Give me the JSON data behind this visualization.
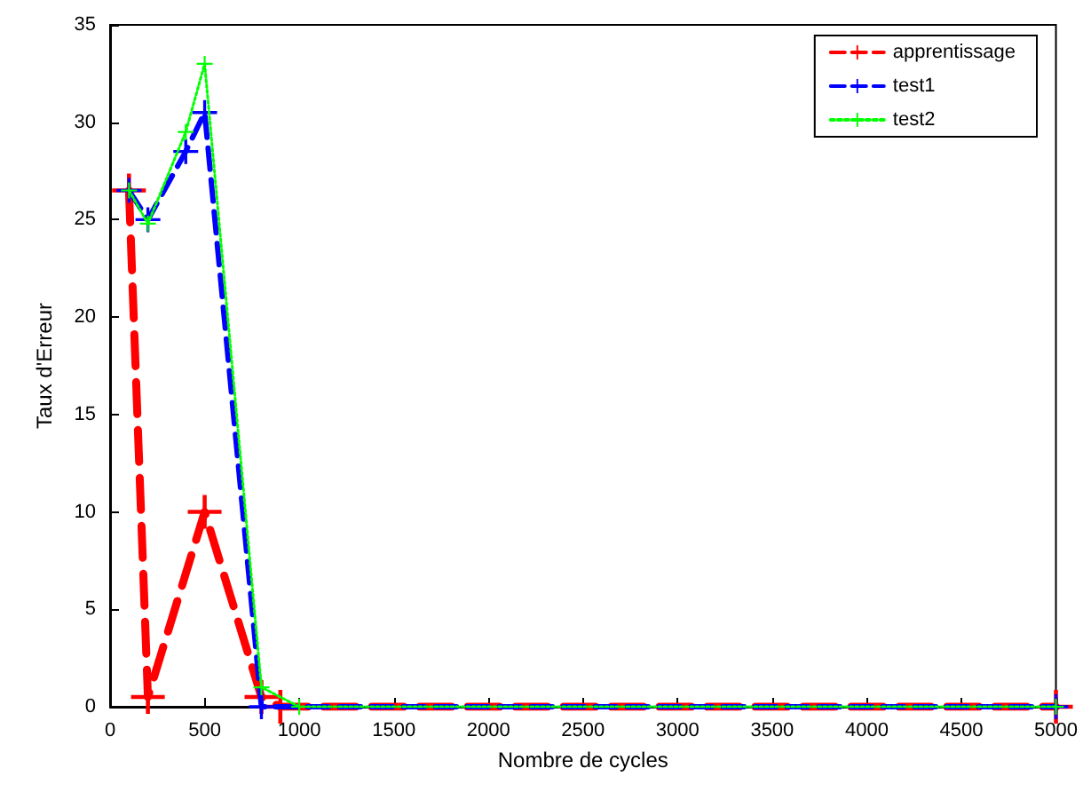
{
  "chart_data": {
    "type": "line",
    "xlabel": "Nombre de cycles",
    "ylabel": "Taux d'Erreur",
    "xlim": [
      0,
      5000
    ],
    "xticks": [
      0,
      500,
      1000,
      1500,
      2000,
      2500,
      3000,
      3500,
      4000,
      4500,
      5000
    ],
    "ylim": [
      0,
      35
    ],
    "yticks": [
      0,
      5,
      10,
      15,
      20,
      25,
      30,
      35
    ],
    "grid": false,
    "legend": "top right",
    "marker": "cross",
    "series": [
      {
        "name": "apprentissage",
        "color": "#ff0000",
        "line_style": "dashed",
        "x": [
          100,
          200,
          500,
          800,
          900,
          5000
        ],
        "values": [
          26.5,
          0.5,
          10,
          0.5,
          0,
          0
        ]
      },
      {
        "name": "test1",
        "color": "#0000ff",
        "line_style": "dashed",
        "x": [
          100,
          200,
          400,
          500,
          800,
          5000
        ],
        "values": [
          26.5,
          25,
          28.5,
          30.5,
          0,
          0
        ]
      },
      {
        "name": "test2",
        "color": "#00ff00",
        "line_style": "dotted",
        "x": [
          100,
          200,
          400,
          500,
          800,
          1000,
          5000
        ],
        "values": [
          26.5,
          24.8,
          29.5,
          33,
          1,
          0,
          0
        ]
      }
    ]
  }
}
